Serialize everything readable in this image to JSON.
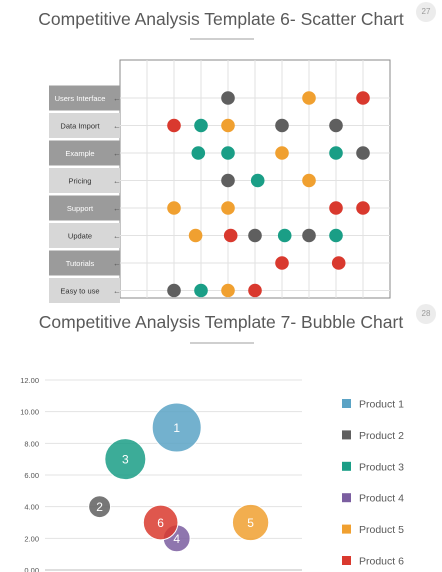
{
  "slides": [
    {
      "number": "27",
      "title": "Competitive Analysis Template 6- Scatter Chart"
    },
    {
      "number": "28",
      "title": "Competitive Analysis Template 7- Bubble Chart"
    }
  ],
  "colors": {
    "gray": "#5f5f5f",
    "teal": "#1a9e86",
    "orange": "#f0a030",
    "red": "#d9392e",
    "blue": "#5ba3c5",
    "purple": "#7b5ea0",
    "category_dark": "#9b9b9b",
    "category_light": "#d7d7d7"
  },
  "chart_data": [
    {
      "type": "scatter",
      "categories": [
        "Users Interface",
        "Data Import",
        "Example",
        "Pricing",
        "Support",
        "Update",
        "Tutorials",
        "Easy to use"
      ],
      "points": [
        {
          "category": "Users Interface",
          "x": 4.0,
          "color": "gray"
        },
        {
          "category": "Users Interface",
          "x": 7.0,
          "color": "orange"
        },
        {
          "category": "Users Interface",
          "x": 9.0,
          "color": "red"
        },
        {
          "category": "Data Import",
          "x": 2.0,
          "color": "red"
        },
        {
          "category": "Data Import",
          "x": 3.0,
          "color": "teal"
        },
        {
          "category": "Data Import",
          "x": 4.0,
          "color": "orange"
        },
        {
          "category": "Data Import",
          "x": 6.0,
          "color": "gray"
        },
        {
          "category": "Data Import",
          "x": 8.0,
          "color": "gray"
        },
        {
          "category": "Example",
          "x": 2.9,
          "color": "teal"
        },
        {
          "category": "Example",
          "x": 4.0,
          "color": "teal"
        },
        {
          "category": "Example",
          "x": 6.0,
          "color": "orange"
        },
        {
          "category": "Example",
          "x": 8.0,
          "color": "teal"
        },
        {
          "category": "Example",
          "x": 9.0,
          "color": "gray"
        },
        {
          "category": "Pricing",
          "x": 4.0,
          "color": "gray"
        },
        {
          "category": "Pricing",
          "x": 5.1,
          "color": "teal"
        },
        {
          "category": "Pricing",
          "x": 7.0,
          "color": "orange"
        },
        {
          "category": "Support",
          "x": 2.0,
          "color": "orange"
        },
        {
          "category": "Support",
          "x": 4.0,
          "color": "orange"
        },
        {
          "category": "Support",
          "x": 8.0,
          "color": "red"
        },
        {
          "category": "Support",
          "x": 9.0,
          "color": "red"
        },
        {
          "category": "Update",
          "x": 2.8,
          "color": "orange"
        },
        {
          "category": "Update",
          "x": 4.1,
          "color": "red"
        },
        {
          "category": "Update",
          "x": 5.0,
          "color": "gray"
        },
        {
          "category": "Update",
          "x": 6.1,
          "color": "teal"
        },
        {
          "category": "Update",
          "x": 7.0,
          "color": "gray"
        },
        {
          "category": "Update",
          "x": 8.0,
          "color": "teal"
        },
        {
          "category": "Tutorials",
          "x": 6.0,
          "color": "red"
        },
        {
          "category": "Tutorials",
          "x": 8.1,
          "color": "red"
        },
        {
          "category": "Easy to use",
          "x": 2.0,
          "color": "gray"
        },
        {
          "category": "Easy to use",
          "x": 3.0,
          "color": "teal"
        },
        {
          "category": "Easy to use",
          "x": 4.0,
          "color": "orange"
        },
        {
          "category": "Easy to use",
          "x": 5.0,
          "color": "red"
        }
      ],
      "xlim": [
        0,
        10
      ],
      "grid": true
    },
    {
      "type": "bubble",
      "ylim": [
        0,
        12
      ],
      "yticks": [
        "0.00",
        "2.00",
        "4.00",
        "6.00",
        "8.00",
        "10.00",
        "12.00"
      ],
      "xlim": [
        0,
        8
      ],
      "series": [
        {
          "name": "Product 1",
          "label": "1",
          "x": 4.1,
          "y": 9.0,
          "size": 10,
          "color": "blue"
        },
        {
          "name": "Product 2",
          "label": "2",
          "x": 1.7,
          "y": 4.0,
          "size": 2,
          "color": "gray"
        },
        {
          "name": "Product 3",
          "label": "3",
          "x": 2.5,
          "y": 7.0,
          "size": 7,
          "color": "teal"
        },
        {
          "name": "Product 4",
          "label": "4",
          "x": 4.1,
          "y": 2.0,
          "size": 3,
          "color": "purple"
        },
        {
          "name": "Product 5",
          "label": "5",
          "x": 6.4,
          "y": 3.0,
          "size": 5.5,
          "color": "orange"
        },
        {
          "name": "Product 6",
          "label": "6",
          "x": 3.6,
          "y": 3.0,
          "size": 5,
          "color": "red"
        }
      ],
      "legend": "right",
      "grid": true
    }
  ]
}
